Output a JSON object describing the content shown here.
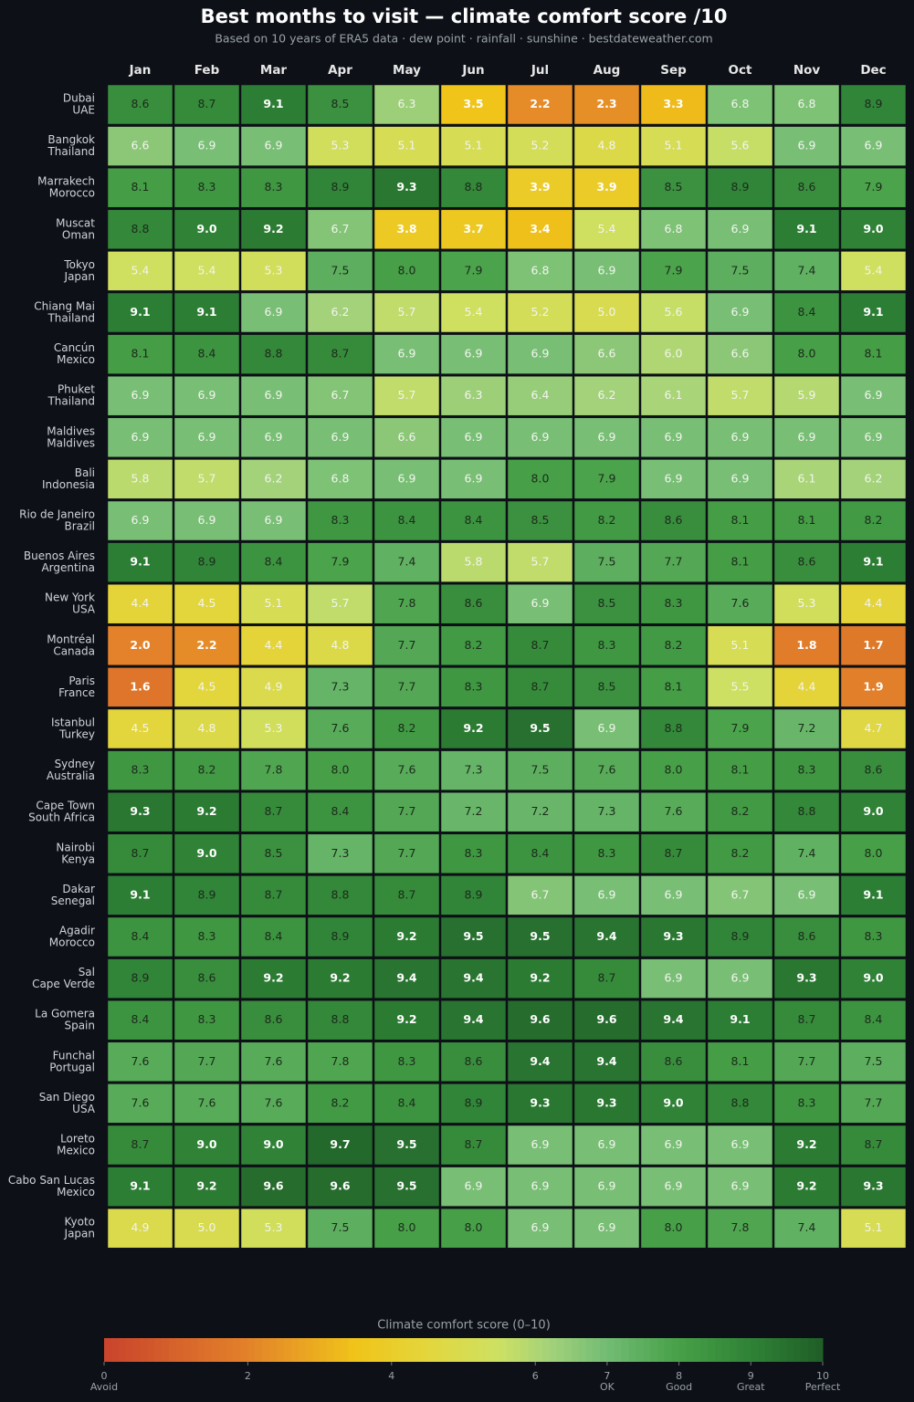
{
  "chart_data": {
    "type": "heatmap",
    "title": "Best months to visit — climate comfort score /10",
    "subtitle": "Based on 10 years of ERA5 data · dew point · rainfall · sunshine · bestdateweather.com",
    "categories": [
      "Jan",
      "Feb",
      "Mar",
      "Apr",
      "May",
      "Jun",
      "Jul",
      "Aug",
      "Sep",
      "Oct",
      "Nov",
      "Dec"
    ],
    "rows": [
      {
        "city": "Dubai",
        "country": "UAE",
        "values": [
          8.6,
          8.7,
          9.1,
          8.5,
          6.3,
          3.5,
          2.2,
          2.3,
          3.3,
          6.8,
          6.8,
          8.9
        ]
      },
      {
        "city": "Bangkok",
        "country": "Thailand",
        "values": [
          6.6,
          6.9,
          6.9,
          5.3,
          5.1,
          5.1,
          5.2,
          4.8,
          5.1,
          5.6,
          6.9,
          6.9
        ]
      },
      {
        "city": "Marrakech",
        "country": "Morocco",
        "values": [
          8.1,
          8.3,
          8.3,
          8.9,
          9.3,
          8.8,
          3.9,
          3.9,
          8.5,
          8.9,
          8.6,
          7.9
        ]
      },
      {
        "city": "Muscat",
        "country": "Oman",
        "values": [
          8.8,
          9.0,
          9.2,
          6.7,
          3.8,
          3.7,
          3.4,
          5.4,
          6.8,
          6.9,
          9.1,
          9.0
        ],
        "value_labels": [
          "8.8",
          "9.0",
          "9.2",
          "6.7",
          "3.8",
          "3.7",
          "3.4",
          "5.4",
          "6.8",
          "6.9",
          "9.1",
          "9.0"
        ]
      },
      {
        "city": "Tokyo",
        "country": "Japan",
        "values": [
          5.4,
          5.4,
          5.3,
          7.5,
          8.0,
          7.9,
          6.8,
          6.9,
          7.9,
          7.5,
          7.4,
          5.4
        ],
        "value_labels": [
          "5.4",
          "5.4",
          "5.3",
          "7.5",
          "8.0",
          "7.9",
          "6.8",
          "6.9",
          "7.9",
          "7.5",
          "7.4",
          "5.4"
        ]
      },
      {
        "city": "Chiang Mai",
        "country": "Thailand",
        "values": [
          9.1,
          9.1,
          6.9,
          6.2,
          5.7,
          5.4,
          5.2,
          5.0,
          5.6,
          6.9,
          8.4,
          9.1
        ],
        "value_labels": [
          "9.1",
          "9.1",
          "6.9",
          "6.2",
          "5.7",
          "5.4",
          "5.2",
          "5.0",
          "5.6",
          "6.9",
          "8.4",
          "9.1"
        ]
      },
      {
        "city": "Cancún",
        "country": "Mexico",
        "values": [
          8.1,
          8.4,
          8.8,
          8.7,
          6.9,
          6.9,
          6.9,
          6.6,
          6.0,
          6.6,
          8.0,
          8.1
        ],
        "value_labels": [
          "8.1",
          "8.4",
          "8.8",
          "8.7",
          "6.9",
          "6.9",
          "6.9",
          "6.6",
          "6.0",
          "6.6",
          "8.0",
          "8.1"
        ]
      },
      {
        "city": "Phuket",
        "country": "Thailand",
        "values": [
          6.9,
          6.9,
          6.9,
          6.7,
          5.7,
          6.3,
          6.4,
          6.2,
          6.1,
          5.7,
          5.9,
          6.9
        ]
      },
      {
        "city": "Maldives",
        "country": "Maldives",
        "values": [
          6.9,
          6.9,
          6.9,
          6.9,
          6.6,
          6.9,
          6.9,
          6.9,
          6.9,
          6.9,
          6.9,
          6.9
        ]
      },
      {
        "city": "Bali",
        "country": "Indonesia",
        "values": [
          5.8,
          5.7,
          6.2,
          6.8,
          6.9,
          6.9,
          8.0,
          7.9,
          6.9,
          6.9,
          6.1,
          6.2
        ],
        "value_labels": [
          "5.8",
          "5.7",
          "6.2",
          "6.8",
          "6.9",
          "6.9",
          "8.0",
          "7.9",
          "6.9",
          "6.9",
          "6.1",
          "6.2"
        ]
      },
      {
        "city": "Rio de Janeiro",
        "country": "Brazil",
        "values": [
          6.9,
          6.9,
          6.9,
          8.3,
          8.4,
          8.4,
          8.5,
          8.2,
          8.6,
          8.1,
          8.1,
          8.2
        ]
      },
      {
        "city": "Buenos Aires",
        "country": "Argentina",
        "values": [
          9.1,
          8.9,
          8.4,
          7.9,
          7.4,
          5.8,
          5.7,
          7.5,
          7.7,
          8.1,
          8.6,
          9.1
        ]
      },
      {
        "city": "New York",
        "country": "USA",
        "values": [
          4.4,
          4.5,
          5.1,
          5.7,
          7.8,
          8.6,
          6.9,
          8.5,
          8.3,
          7.6,
          5.3,
          4.4
        ]
      },
      {
        "city": "Montréal",
        "country": "Canada",
        "values": [
          2.0,
          2.2,
          4.4,
          4.8,
          7.7,
          8.2,
          8.7,
          8.3,
          8.2,
          5.1,
          1.8,
          1.7
        ],
        "value_labels": [
          "2.0",
          "2.2",
          "4.4",
          "4.8",
          "7.7",
          "8.2",
          "8.7",
          "8.3",
          "8.2",
          "5.1",
          "1.8",
          "1.7"
        ]
      },
      {
        "city": "Paris",
        "country": "France",
        "values": [
          1.6,
          4.5,
          4.9,
          7.3,
          7.7,
          8.3,
          8.7,
          8.5,
          8.1,
          5.5,
          4.4,
          1.9
        ]
      },
      {
        "city": "Istanbul",
        "country": "Turkey",
        "values": [
          4.5,
          4.8,
          5.3,
          7.6,
          8.2,
          9.2,
          9.5,
          6.9,
          8.8,
          7.9,
          7.2,
          4.7
        ]
      },
      {
        "city": "Sydney",
        "country": "Australia",
        "values": [
          8.3,
          8.2,
          7.8,
          8.0,
          7.6,
          7.3,
          7.5,
          7.6,
          8.0,
          8.1,
          8.3,
          8.6
        ],
        "value_labels": [
          "8.3",
          "8.2",
          "7.8",
          "8.0",
          "7.6",
          "7.3",
          "7.5",
          "7.6",
          "8.0",
          "8.1",
          "8.3",
          "8.6"
        ]
      },
      {
        "city": "Cape Town",
        "country": "South Africa",
        "values": [
          9.3,
          9.2,
          8.7,
          8.4,
          7.7,
          7.2,
          7.2,
          7.3,
          7.6,
          8.2,
          8.8,
          9.0
        ],
        "value_labels": [
          "9.3",
          "9.2",
          "8.7",
          "8.4",
          "7.7",
          "7.2",
          "7.2",
          "7.3",
          "7.6",
          "8.2",
          "8.8",
          "9.0"
        ]
      },
      {
        "city": "Nairobi",
        "country": "Kenya",
        "values": [
          8.7,
          9.0,
          8.5,
          7.3,
          7.7,
          8.3,
          8.4,
          8.3,
          8.7,
          8.2,
          7.4,
          8.0
        ],
        "value_labels": [
          "8.7",
          "9.0",
          "8.5",
          "7.3",
          "7.7",
          "8.3",
          "8.4",
          "8.3",
          "8.7",
          "8.2",
          "7.4",
          "8.0"
        ]
      },
      {
        "city": "Dakar",
        "country": "Senegal",
        "values": [
          9.1,
          8.9,
          8.7,
          8.8,
          8.7,
          8.9,
          6.7,
          6.9,
          6.9,
          6.7,
          6.9,
          9.1
        ]
      },
      {
        "city": "Agadir",
        "country": "Morocco",
        "values": [
          8.4,
          8.3,
          8.4,
          8.9,
          9.2,
          9.5,
          9.5,
          9.4,
          9.3,
          8.9,
          8.6,
          8.3
        ]
      },
      {
        "city": "Sal",
        "country": "Cape Verde",
        "values": [
          8.9,
          8.6,
          9.2,
          9.2,
          9.4,
          9.4,
          9.2,
          8.7,
          6.9,
          6.9,
          9.3,
          9.0
        ],
        "value_labels": [
          "8.9",
          "8.6",
          "9.2",
          "9.2",
          "9.4",
          "9.4",
          "9.2",
          "8.7",
          "6.9",
          "6.9",
          "9.3",
          "9.0"
        ]
      },
      {
        "city": "La Gomera",
        "country": "Spain",
        "values": [
          8.4,
          8.3,
          8.6,
          8.8,
          9.2,
          9.4,
          9.6,
          9.6,
          9.4,
          9.1,
          8.7,
          8.4
        ]
      },
      {
        "city": "Funchal",
        "country": "Portugal",
        "values": [
          7.6,
          7.7,
          7.6,
          7.8,
          8.3,
          8.6,
          9.4,
          9.4,
          8.6,
          8.1,
          7.7,
          7.5
        ]
      },
      {
        "city": "San Diego",
        "country": "USA",
        "values": [
          7.6,
          7.6,
          7.6,
          8.2,
          8.4,
          8.9,
          9.3,
          9.3,
          9.0,
          8.8,
          8.3,
          7.7
        ],
        "value_labels": [
          "7.6",
          "7.6",
          "7.6",
          "8.2",
          "8.4",
          "8.9",
          "9.3",
          "9.3",
          "9.0",
          "8.8",
          "8.3",
          "7.7"
        ]
      },
      {
        "city": "Loreto",
        "country": "Mexico",
        "values": [
          8.7,
          9.0,
          9.0,
          9.7,
          9.5,
          8.7,
          6.9,
          6.9,
          6.9,
          6.9,
          9.2,
          8.7
        ],
        "value_labels": [
          "8.7",
          "9.0",
          "9.0",
          "9.7",
          "9.5",
          "8.7",
          "6.9",
          "6.9",
          "6.9",
          "6.9",
          "9.2",
          "8.7"
        ]
      },
      {
        "city": "Cabo San Lucas",
        "country": "Mexico",
        "values": [
          9.1,
          9.2,
          9.6,
          9.6,
          9.5,
          6.9,
          6.9,
          6.9,
          6.9,
          6.9,
          9.2,
          9.3
        ]
      },
      {
        "city": "Kyoto",
        "country": "Japan",
        "values": [
          4.9,
          5.0,
          5.3,
          7.5,
          8.0,
          8.0,
          6.9,
          6.9,
          8.0,
          7.8,
          7.4,
          5.1
        ],
        "value_labels": [
          "4.9",
          "5.0",
          "5.3",
          "7.5",
          "8.0",
          "8.0",
          "6.9",
          "6.9",
          "8.0",
          "7.8",
          "7.4",
          "5.1"
        ]
      }
    ],
    "colorscale": [
      [
        0,
        "#c9432c"
      ],
      [
        2,
        "#e3822a"
      ],
      [
        3.5,
        "#f0c419"
      ],
      [
        4.5,
        "#e3d63c"
      ],
      [
        5.5,
        "#cde063"
      ],
      [
        6.2,
        "#a3d27a"
      ],
      [
        7,
        "#72bc74"
      ],
      [
        8,
        "#47a047"
      ],
      [
        9,
        "#2f8236"
      ],
      [
        10,
        "#1f5e27"
      ]
    ],
    "colorbar": {
      "label": "Climate comfort score (0–10)",
      "lim": [
        0,
        10
      ],
      "ticks": [
        0,
        2,
        4,
        6,
        7,
        8,
        9,
        10
      ],
      "tick_notes": [
        {
          "value": 0,
          "label": "Avoid"
        },
        {
          "value": 7,
          "label": "OK"
        },
        {
          "value": 8,
          "label": "Good"
        },
        {
          "value": 9,
          "label": "Great"
        },
        {
          "value": 10,
          "label": "Perfect"
        }
      ]
    }
  }
}
